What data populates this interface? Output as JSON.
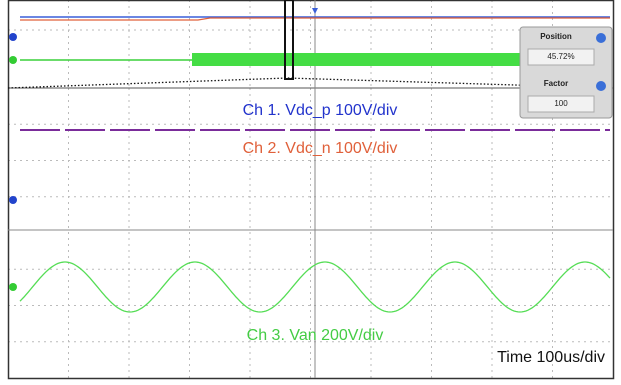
{
  "scope": {
    "zoom_panel": {
      "position_label": "Position",
      "position_value": "45.72%",
      "factor_label": "Factor",
      "factor_value": "100"
    },
    "channels": [
      {
        "label": "Ch 1. Vdc_p 100V/div"
      },
      {
        "label": "Ch 2. Vdc_n 100V/div"
      },
      {
        "label": "Ch 3. Van 200V/div"
      }
    ],
    "timebase": "Time 100us/div"
  }
}
